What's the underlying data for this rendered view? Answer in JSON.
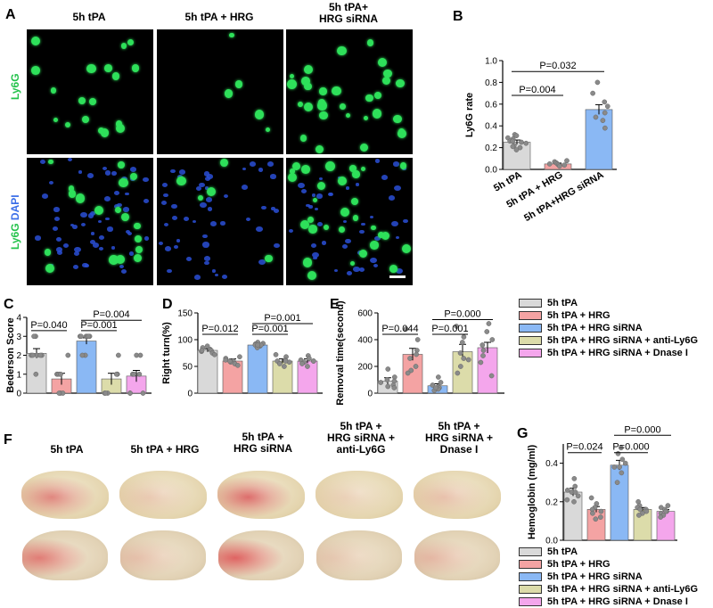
{
  "panels": {
    "A": "A",
    "B": "B",
    "C": "C",
    "D": "D",
    "E": "E",
    "F": "F",
    "G": "G"
  },
  "panelA": {
    "columns": [
      "5h tPA",
      "5h  tPA + HRG",
      "5h tPA+\nHRG siRNA"
    ],
    "row1_label": "Ly6G",
    "row2_label_green": "Ly6G",
    "row2_label_blue": "DAPI"
  },
  "panelF": {
    "columns": [
      "5h tPA",
      "5h tPA + HRG",
      "5h tPA +\nHRG siRNA",
      "5h tPA +\nHRG siRNA +\nanti-Ly6G",
      "5h tPA +\nHRG siRNA +\nDnase I"
    ]
  },
  "legend_main": [
    {
      "label": "5h tPA",
      "color": "#d9d9d9"
    },
    {
      "label": "5h tPA + HRG",
      "color": "#f4a3a3"
    },
    {
      "label": "5h tPA + HRG siRNA",
      "color": "#8ab8f4"
    },
    {
      "label": "5h tPA + HRG siRNA + anti-Ly6G",
      "color": "#dcdcaa"
    },
    {
      "label": "5h tPA + HRG siRNA + Dnase I",
      "color": "#f4a6ec"
    }
  ],
  "chart_data": [
    {
      "panel": "B",
      "type": "bar",
      "ylabel": "Ly6G rate",
      "ylim": [
        0,
        1.0
      ],
      "yticks": [
        0.0,
        0.2,
        0.4,
        0.6,
        0.8,
        1.0
      ],
      "ytick_labels": [
        "0.0",
        "0.2",
        "0.4",
        "0.6",
        "0.8",
        "1.0"
      ],
      "categories": [
        "5h tPA",
        "5h tPA + HRG",
        "5h tPA+HRG siRNA"
      ],
      "colors": [
        "#d9d9d9",
        "#f4a3a3",
        "#8ab8f4"
      ],
      "values": [
        0.25,
        0.05,
        0.55
      ],
      "errors": [
        0.02,
        0.008,
        0.045
      ],
      "points": [
        [
          0.32,
          0.31,
          0.29,
          0.28,
          0.26,
          0.25,
          0.24,
          0.22,
          0.21,
          0.2,
          0.18,
          0.26
        ],
        [
          0.08,
          0.07,
          0.06,
          0.05,
          0.05,
          0.04,
          0.04,
          0.03
        ],
        [
          0.8,
          0.7,
          0.62,
          0.58,
          0.52,
          0.48,
          0.45,
          0.38
        ]
      ],
      "comparisons": [
        {
          "label": "P=0.004",
          "from": 0,
          "to": 1,
          "y": 0.68
        },
        {
          "label": "P=0.032",
          "from": 0,
          "to": 2,
          "y": 0.9
        }
      ]
    },
    {
      "panel": "C",
      "type": "bar",
      "ylabel": "Bederson Score",
      "ylim": [
        0,
        4
      ],
      "yticks": [
        0,
        1,
        2,
        3,
        4
      ],
      "ytick_labels": [
        "0",
        "1",
        "2",
        "3",
        "4"
      ],
      "colors": [
        "#d9d9d9",
        "#f4a3a3",
        "#8ab8f4",
        "#dcdcaa",
        "#f4a6ec"
      ],
      "values": [
        2.1,
        0.75,
        2.75,
        0.75,
        0.9
      ],
      "errors": [
        0.25,
        0.3,
        0.17,
        0.3,
        0.3
      ],
      "points": [
        [
          3,
          3,
          2,
          2,
          2,
          2,
          1,
          2
        ],
        [
          2,
          1,
          1,
          1,
          0,
          0,
          0,
          1
        ],
        [
          3,
          3,
          3,
          3,
          3,
          2,
          2,
          3
        ],
        [
          2,
          1,
          1,
          1,
          0,
          0,
          0,
          1
        ],
        [
          2,
          2,
          1,
          1,
          1,
          0,
          0,
          0
        ]
      ],
      "comparisons": [
        {
          "label": "P=0.040",
          "from": 0,
          "to": 1,
          "y": 3.3
        },
        {
          "label": "P=0.001",
          "from": 2,
          "to": 3,
          "y": 3.3
        },
        {
          "label": "P=0.004",
          "from": 2,
          "to": 4,
          "y": 3.85
        }
      ]
    },
    {
      "panel": "D",
      "type": "bar",
      "ylabel": "Right turn(%)",
      "ylim": [
        0,
        150
      ],
      "yticks": [
        0,
        50,
        100,
        150
      ],
      "ytick_labels": [
        "0",
        "50",
        "100",
        "150"
      ],
      "colors": [
        "#d9d9d9",
        "#f4a3a3",
        "#8ab8f4",
        "#dcdcaa",
        "#f4a6ec"
      ],
      "values": [
        80,
        60,
        90,
        60,
        60
      ],
      "errors": [
        3,
        4,
        3,
        4,
        4
      ],
      "points": [
        [
          88,
          85,
          82,
          80,
          78,
          75,
          72,
          80
        ],
        [
          68,
          65,
          62,
          60,
          58,
          55,
          52,
          60
        ],
        [
          95,
          93,
          92,
          90,
          88,
          85,
          90,
          90
        ],
        [
          72,
          68,
          62,
          60,
          58,
          55,
          50,
          60
        ],
        [
          70,
          65,
          62,
          60,
          58,
          55,
          50,
          60
        ]
      ],
      "comparisons": [
        {
          "label": "P=0.012",
          "from": 0,
          "to": 1,
          "y": 110
        },
        {
          "label": "P=0.001",
          "from": 2,
          "to": 3,
          "y": 110
        },
        {
          "label": "P=0.001",
          "from": 2,
          "to": 4,
          "y": 130
        }
      ]
    },
    {
      "panel": "E",
      "type": "bar",
      "ylabel": "Removal time(second)",
      "ylim": [
        0,
        600
      ],
      "yticks": [
        0,
        200,
        400,
        600
      ],
      "ytick_labels": [
        "0",
        "200",
        "400",
        "600"
      ],
      "colors": [
        "#d9d9d9",
        "#f4a3a3",
        "#8ab8f4",
        "#dcdcaa",
        "#f4a6ec"
      ],
      "values": [
        90,
        290,
        55,
        310,
        340
      ],
      "errors": [
        25,
        45,
        15,
        55,
        40
      ],
      "points": [
        [
          180,
          120,
          100,
          90,
          80,
          60,
          50,
          40
        ],
        [
          480,
          400,
          320,
          290,
          260,
          200,
          170,
          150
        ],
        [
          120,
          80,
          60,
          50,
          40,
          30,
          20,
          40
        ],
        [
          500,
          420,
          380,
          300,
          250,
          200,
          150,
          260
        ],
        [
          520,
          460,
          400,
          360,
          320,
          280,
          230,
          130
        ]
      ],
      "comparisons": [
        {
          "label": "P=0.044",
          "from": 0,
          "to": 1,
          "y": 440
        },
        {
          "label": "P=0.001",
          "from": 2,
          "to": 3,
          "y": 440
        },
        {
          "label": "P=0.000",
          "from": 2,
          "to": 4,
          "y": 550
        }
      ]
    },
    {
      "panel": "G",
      "type": "bar",
      "ylabel": "Hemoglobin (mg/ml)",
      "ylim": [
        0,
        0.5
      ],
      "yticks": [
        0.0,
        0.2,
        0.4
      ],
      "ytick_labels": [
        "0.0",
        "0.2",
        "0.4"
      ],
      "colors": [
        "#d9d9d9",
        "#f4a3a3",
        "#8ab8f4",
        "#dcdcaa",
        "#f4a6ec"
      ],
      "values": [
        0.25,
        0.16,
        0.39,
        0.16,
        0.15
      ],
      "errors": [
        0.02,
        0.015,
        0.025,
        0.01,
        0.01
      ],
      "points": [
        [
          0.32,
          0.28,
          0.26,
          0.25,
          0.23,
          0.21,
          0.2,
          0.25
        ],
        [
          0.22,
          0.19,
          0.17,
          0.16,
          0.14,
          0.12,
          0.11,
          0.15
        ],
        [
          0.48,
          0.45,
          0.42,
          0.4,
          0.38,
          0.35,
          0.3,
          0.38
        ],
        [
          0.2,
          0.18,
          0.17,
          0.16,
          0.15,
          0.14,
          0.13,
          0.16
        ],
        [
          0.18,
          0.17,
          0.16,
          0.15,
          0.14,
          0.13,
          0.12,
          0.15
        ]
      ],
      "comparisons": [
        {
          "label": "P=0.024",
          "from": 0,
          "to": 1,
          "y": 0.455
        },
        {
          "label": "P=0.000",
          "from": 2,
          "to": 3,
          "y": 0.455
        },
        {
          "label": "P=0.000",
          "from": 2,
          "to": 4,
          "y": 0.545
        }
      ]
    }
  ]
}
